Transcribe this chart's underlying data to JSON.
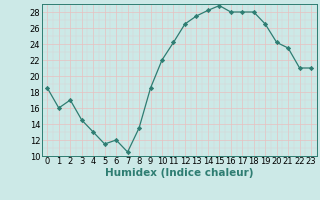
{
  "x": [
    0,
    1,
    2,
    3,
    4,
    5,
    6,
    7,
    8,
    9,
    10,
    11,
    12,
    13,
    14,
    15,
    16,
    17,
    18,
    19,
    20,
    21,
    22,
    23
  ],
  "y": [
    18.5,
    16.0,
    17.0,
    14.5,
    13.0,
    11.5,
    12.0,
    10.5,
    13.5,
    18.5,
    22.0,
    24.2,
    26.5,
    27.5,
    28.2,
    28.8,
    28.0,
    28.0,
    28.0,
    26.5,
    24.2,
    23.5,
    21.0,
    21.0
  ],
  "xlabel": "Humidex (Indice chaleur)",
  "xlim": [
    -0.5,
    23.5
  ],
  "ylim": [
    10,
    29
  ],
  "yticks": [
    10,
    12,
    14,
    16,
    18,
    20,
    22,
    24,
    26,
    28
  ],
  "xticks": [
    0,
    1,
    2,
    3,
    4,
    5,
    6,
    7,
    8,
    9,
    10,
    11,
    12,
    13,
    14,
    15,
    16,
    17,
    18,
    19,
    20,
    21,
    22,
    23
  ],
  "line_color": "#2e7d72",
  "marker": "D",
  "marker_size": 2.2,
  "bg_color": "#cce9e7",
  "grid_major_color": "#e8c0c0",
  "grid_minor_color": "#dcd0d0",
  "xlabel_fontsize": 7.5,
  "tick_fontsize": 6.0
}
